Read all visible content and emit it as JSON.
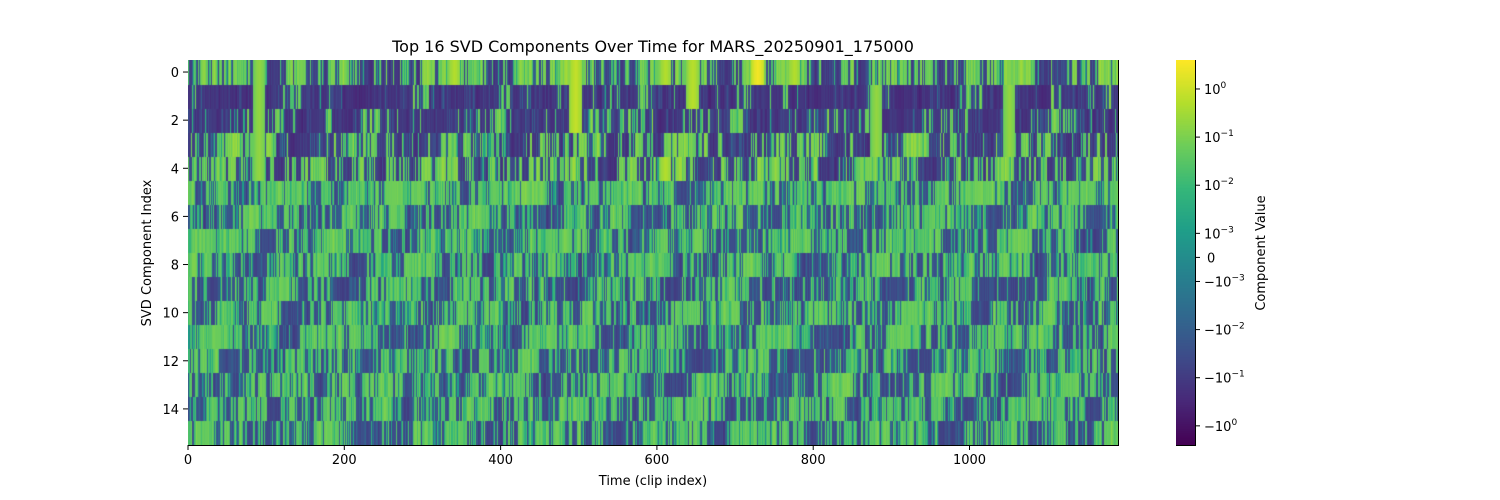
{
  "chart_data": {
    "type": "heatmap",
    "title": "Top 16 SVD Components Over Time for MARS_20250901_175000",
    "xlabel": "Time (clip index)",
    "ylabel": "SVD Component Index",
    "xlim": [
      0,
      1190
    ],
    "ylim": [
      15.5,
      -0.5
    ],
    "x_ticks": [
      {
        "value": 0,
        "label": "0"
      },
      {
        "value": 200,
        "label": "200"
      },
      {
        "value": 400,
        "label": "400"
      },
      {
        "value": 600,
        "label": "600"
      },
      {
        "value": 800,
        "label": "800"
      },
      {
        "value": 1000,
        "label": "1000"
      }
    ],
    "y_ticks": [
      {
        "value": 0,
        "label": "0"
      },
      {
        "value": 2,
        "label": "2"
      },
      {
        "value": 4,
        "label": "4"
      },
      {
        "value": 6,
        "label": "6"
      },
      {
        "value": 8,
        "label": "8"
      },
      {
        "value": 10,
        "label": "10"
      },
      {
        "value": 12,
        "label": "12"
      },
      {
        "value": 14,
        "label": "14"
      }
    ],
    "n_components": 16,
    "n_time": 1190,
    "colormap": "viridis",
    "scale": "symlog",
    "colorbar": {
      "label": "Component Value",
      "linthresh": 0.001,
      "vmin": -2.5,
      "vmax": 4,
      "ticks": [
        {
          "value": 1,
          "base": "10",
          "exp": "0",
          "sign": ""
        },
        {
          "value": 0.1,
          "base": "10",
          "exp": "−1",
          "sign": ""
        },
        {
          "value": 0.01,
          "base": "10",
          "exp": "−2",
          "sign": ""
        },
        {
          "value": 0.001,
          "base": "10",
          "exp": "−3",
          "sign": ""
        },
        {
          "value": 0,
          "plain": "0"
        },
        {
          "value": -0.001,
          "base": "10",
          "exp": "−3",
          "sign": "−"
        },
        {
          "value": -0.01,
          "base": "10",
          "exp": "−2",
          "sign": "−"
        },
        {
          "value": -0.1,
          "base": "10",
          "exp": "−1",
          "sign": "−"
        },
        {
          "value": -1,
          "base": "10",
          "exp": "0",
          "sign": "−"
        }
      ]
    },
    "component_means": [
      0.05,
      -0.3,
      -0.2,
      -0.05,
      0.0,
      0.05,
      0.02,
      0.02,
      0.02,
      0.0,
      0.02,
      0.02,
      0.0,
      0.02,
      0.02,
      0.02
    ],
    "bright_events": [
      {
        "x": 90,
        "rows": [
          0,
          1,
          2,
          3,
          4
        ],
        "value": 0.2
      },
      {
        "x": 340,
        "rows": [
          0
        ],
        "value": 0.5
      },
      {
        "x": 495,
        "rows": [
          0,
          1,
          2
        ],
        "value": 0.8
      },
      {
        "x": 610,
        "rows": [
          0,
          4
        ],
        "value": 0.5
      },
      {
        "x": 645,
        "rows": [
          0,
          1
        ],
        "value": 0.6
      },
      {
        "x": 728,
        "rows": [
          0
        ],
        "value": 3.0
      },
      {
        "x": 775,
        "rows": [
          0
        ],
        "value": 0.5
      },
      {
        "x": 880,
        "rows": [
          1,
          2,
          3
        ],
        "value": 0.2
      },
      {
        "x": 1050,
        "rows": [
          1,
          2,
          3
        ],
        "value": 0.2
      }
    ]
  }
}
